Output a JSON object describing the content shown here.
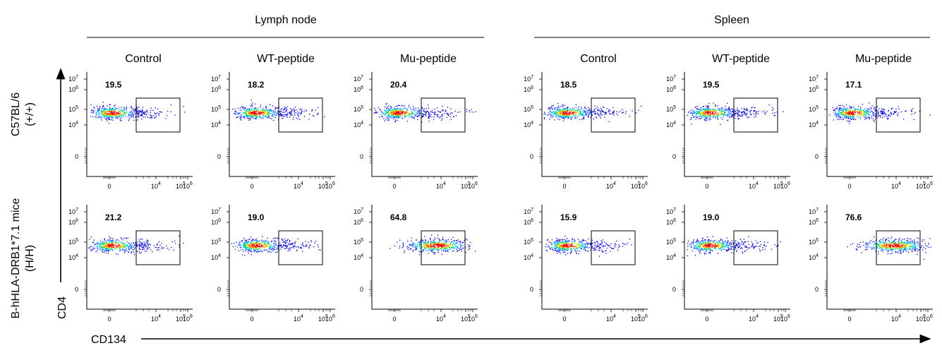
{
  "chart_data": {
    "type": "scatter",
    "x_axis_title": "CD134",
    "y_axis_title": "CD4",
    "groups": [
      {
        "title": "Lymph node",
        "columns": [
          "Control",
          "WT-peptide",
          "Mu-peptide"
        ]
      },
      {
        "title": "Spleen",
        "columns": [
          "Control",
          "WT-peptide",
          "Mu-peptide"
        ]
      }
    ],
    "rows": [
      {
        "label_line1": "C57BL/6",
        "label_line2": "(+/+)"
      },
      {
        "label_line1": "B-hHLA-DRB1*7.1 mice",
        "label_line2": "(H/H)"
      }
    ],
    "x_tick_labels": [
      {
        "base": "0",
        "exp": ""
      },
      {
        "base": "10",
        "exp": "4"
      },
      {
        "base": "10",
        "exp": "5"
      },
      {
        "base": "10",
        "exp": "6"
      }
    ],
    "y_tick_labels": [
      {
        "base": "10",
        "exp": "7"
      },
      {
        "base": "10",
        "exp": "6"
      },
      {
        "base": "10",
        "exp": "5"
      },
      {
        "base": "10",
        "exp": "4"
      },
      {
        "base": "0",
        "exp": ""
      }
    ],
    "panels": [
      {
        "group": "Lymph node",
        "sample": "Control",
        "strain": "C57BL/6 (+/+)",
        "gate_percent": "19.5",
        "population_center_x": 0.3,
        "population_center_y": 4.8
      },
      {
        "group": "Lymph node",
        "sample": "WT-peptide",
        "strain": "C57BL/6 (+/+)",
        "gate_percent": "18.2",
        "population_center_x": 0.4,
        "population_center_y": 4.8
      },
      {
        "group": "Lymph node",
        "sample": "Mu-peptide",
        "strain": "C57BL/6 (+/+)",
        "gate_percent": "20.4",
        "population_center_x": 0.4,
        "population_center_y": 4.8
      },
      {
        "group": "Spleen",
        "sample": "Control",
        "strain": "C57BL/6 (+/+)",
        "gate_percent": "18.5",
        "population_center_x": 0.3,
        "population_center_y": 4.8
      },
      {
        "group": "Spleen",
        "sample": "WT-peptide",
        "strain": "C57BL/6 (+/+)",
        "gate_percent": "19.5",
        "population_center_x": 0.3,
        "population_center_y": 4.8
      },
      {
        "group": "Spleen",
        "sample": "Mu-peptide",
        "strain": "C57BL/6 (+/+)",
        "gate_percent": "17.1",
        "population_center_x": 0.3,
        "population_center_y": 4.8
      },
      {
        "group": "Lymph node",
        "sample": "Control",
        "strain": "B-hHLA-DRB1*7.1 mice (H/H)",
        "gate_percent": "21.2",
        "population_center_x": 0.3,
        "population_center_y": 4.8
      },
      {
        "group": "Lymph node",
        "sample": "WT-peptide",
        "strain": "B-hHLA-DRB1*7.1 mice (H/H)",
        "gate_percent": "19.0",
        "population_center_x": 0.4,
        "population_center_y": 4.8
      },
      {
        "group": "Lymph node",
        "sample": "Mu-peptide",
        "strain": "B-hHLA-DRB1*7.1 mice (H/H)",
        "gate_percent": "64.8",
        "population_center_x": 3.6,
        "population_center_y": 4.8
      },
      {
        "group": "Spleen",
        "sample": "Control",
        "strain": "B-hHLA-DRB1*7.1 mice (H/H)",
        "gate_percent": "15.9",
        "population_center_x": 0.3,
        "population_center_y": 4.8
      },
      {
        "group": "Spleen",
        "sample": "WT-peptide",
        "strain": "B-hHLA-DRB1*7.1 mice (H/H)",
        "gate_percent": "19.0",
        "population_center_x": 0.3,
        "population_center_y": 4.8
      },
      {
        "group": "Spleen",
        "sample": "Mu-peptide",
        "strain": "B-hHLA-DRB1*7.1 mice (H/H)",
        "gate_percent": "76.6",
        "population_center_x": 3.8,
        "population_center_y": 4.8
      }
    ],
    "density_colors": [
      "#0000cc",
      "#1e64ff",
      "#00c8e6",
      "#00d25a",
      "#f0dc00",
      "#ff6a00",
      "#e60000"
    ],
    "gate_color": "#000000",
    "frame_color": "#000000"
  }
}
